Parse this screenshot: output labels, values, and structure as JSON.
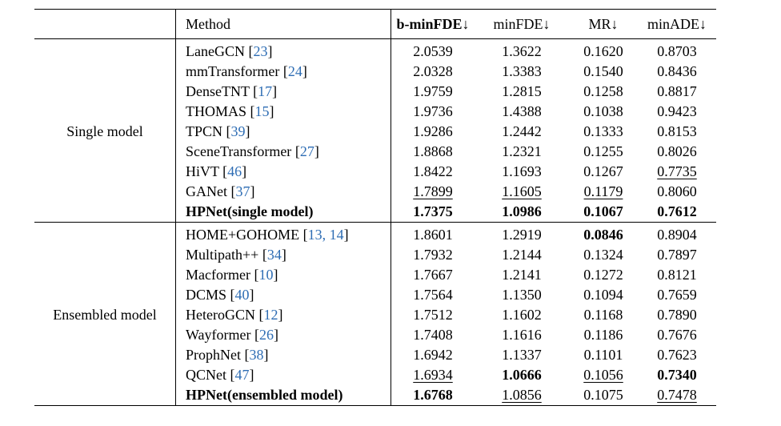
{
  "header": {
    "method": "Method",
    "cols": [
      "b-minFDE↓",
      "minFDE↓",
      "MR↓",
      "minADE↓"
    ]
  },
  "groups": [
    {
      "label": "Single model",
      "rows": [
        {
          "name": "LaneGCN",
          "refs": "23",
          "vals": [
            "2.0539",
            "1.3622",
            "0.1620",
            "0.8703"
          ],
          "bold": [
            false,
            false,
            false,
            false
          ],
          "ul": [
            false,
            false,
            false,
            false
          ],
          "name_bold": false
        },
        {
          "name": "mmTransformer",
          "refs": "24",
          "vals": [
            "2.0328",
            "1.3383",
            "0.1540",
            "0.8436"
          ],
          "bold": [
            false,
            false,
            false,
            false
          ],
          "ul": [
            false,
            false,
            false,
            false
          ],
          "name_bold": false
        },
        {
          "name": "DenseTNT",
          "refs": "17",
          "vals": [
            "1.9759",
            "1.2815",
            "0.1258",
            "0.8817"
          ],
          "bold": [
            false,
            false,
            false,
            false
          ],
          "ul": [
            false,
            false,
            false,
            false
          ],
          "name_bold": false
        },
        {
          "name": "THOMAS",
          "refs": "15",
          "vals": [
            "1.9736",
            "1.4388",
            "0.1038",
            "0.9423"
          ],
          "bold": [
            false,
            false,
            false,
            false
          ],
          "ul": [
            false,
            false,
            false,
            false
          ],
          "name_bold": false
        },
        {
          "name": "TPCN",
          "refs": "39",
          "vals": [
            "1.9286",
            "1.2442",
            "0.1333",
            "0.8153"
          ],
          "bold": [
            false,
            false,
            false,
            false
          ],
          "ul": [
            false,
            false,
            false,
            false
          ],
          "name_bold": false
        },
        {
          "name": "SceneTransformer",
          "refs": "27",
          "vals": [
            "1.8868",
            "1.2321",
            "0.1255",
            "0.8026"
          ],
          "bold": [
            false,
            false,
            false,
            false
          ],
          "ul": [
            false,
            false,
            false,
            false
          ],
          "name_bold": false
        },
        {
          "name": "HiVT",
          "refs": "46",
          "vals": [
            "1.8422",
            "1.1693",
            "0.1267",
            "0.7735"
          ],
          "bold": [
            false,
            false,
            false,
            false
          ],
          "ul": [
            false,
            false,
            false,
            true
          ],
          "name_bold": false
        },
        {
          "name": "GANet",
          "refs": "37",
          "vals": [
            "1.7899",
            "1.1605",
            "0.1179",
            "0.8060"
          ],
          "bold": [
            false,
            false,
            false,
            false
          ],
          "ul": [
            true,
            true,
            true,
            false
          ],
          "name_bold": false
        },
        {
          "name": "HPNet(single model)",
          "refs": "",
          "vals": [
            "1.7375",
            "1.0986",
            "0.1067",
            "0.7612"
          ],
          "bold": [
            true,
            true,
            true,
            true
          ],
          "ul": [
            false,
            false,
            false,
            false
          ],
          "name_bold": true
        }
      ]
    },
    {
      "label": "Ensembled model",
      "rows": [
        {
          "name": "HOME+GOHOME",
          "refs": "13, 14",
          "vals": [
            "1.8601",
            "1.2919",
            "0.0846",
            "0.8904"
          ],
          "bold": [
            false,
            false,
            true,
            false
          ],
          "ul": [
            false,
            false,
            false,
            false
          ],
          "name_bold": false
        },
        {
          "name": "Multipath++",
          "refs": "34",
          "vals": [
            "1.7932",
            "1.2144",
            "0.1324",
            "0.7897"
          ],
          "bold": [
            false,
            false,
            false,
            false
          ],
          "ul": [
            false,
            false,
            false,
            false
          ],
          "name_bold": false
        },
        {
          "name": "Macformer",
          "refs": "10",
          "vals": [
            "1.7667",
            "1.2141",
            "0.1272",
            "0.8121"
          ],
          "bold": [
            false,
            false,
            false,
            false
          ],
          "ul": [
            false,
            false,
            false,
            false
          ],
          "name_bold": false
        },
        {
          "name": "DCMS",
          "refs": "40",
          "vals": [
            "1.7564",
            "1.1350",
            "0.1094",
            "0.7659"
          ],
          "bold": [
            false,
            false,
            false,
            false
          ],
          "ul": [
            false,
            false,
            false,
            false
          ],
          "name_bold": false
        },
        {
          "name": "HeteroGCN",
          "refs": "12",
          "vals": [
            "1.7512",
            "1.1602",
            "0.1168",
            "0.7890"
          ],
          "bold": [
            false,
            false,
            false,
            false
          ],
          "ul": [
            false,
            false,
            false,
            false
          ],
          "name_bold": false
        },
        {
          "name": "Wayformer",
          "refs": "26",
          "vals": [
            "1.7408",
            "1.1616",
            "0.1186",
            "0.7676"
          ],
          "bold": [
            false,
            false,
            false,
            false
          ],
          "ul": [
            false,
            false,
            false,
            false
          ],
          "name_bold": false
        },
        {
          "name": "ProphNet",
          "refs": "38",
          "vals": [
            "1.6942",
            "1.1337",
            "0.1101",
            "0.7623"
          ],
          "bold": [
            false,
            false,
            false,
            false
          ],
          "ul": [
            false,
            false,
            false,
            false
          ],
          "name_bold": false
        },
        {
          "name": "QCNet",
          "refs": "47",
          "vals": [
            "1.6934",
            "1.0666",
            "0.1056",
            "0.7340"
          ],
          "bold": [
            false,
            true,
            false,
            true
          ],
          "ul": [
            true,
            false,
            true,
            false
          ],
          "name_bold": false
        },
        {
          "name": "HPNet(ensembled model)",
          "refs": "",
          "vals": [
            "1.6768",
            "1.0856",
            "0.1075",
            "0.7478"
          ],
          "bold": [
            true,
            false,
            false,
            false
          ],
          "ul": [
            false,
            true,
            false,
            true
          ],
          "name_bold": true
        }
      ]
    }
  ]
}
